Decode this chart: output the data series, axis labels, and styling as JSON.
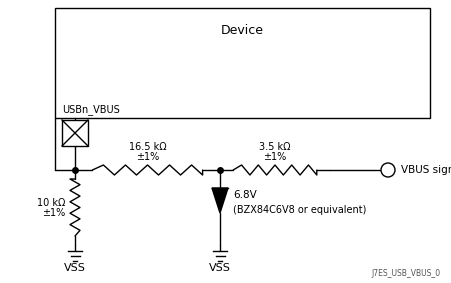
{
  "background_color": "#ffffff",
  "device_label": "Device",
  "usbvbus_label": "USBn_VBUS",
  "vbus_signal_label": "VBUS signal",
  "r1_label1": "16.5 kΩ",
  "r1_label2": "±1%",
  "r2_label1": "3.5 kΩ",
  "r2_label2": "±1%",
  "r3_label1": "10 kΩ",
  "r3_label2": "±1%",
  "zener_label1": "6.8V",
  "zener_label2": "(BZX84C6V8 or equivalent)",
  "vss1_label": "VSS",
  "vss2_label": "VSS",
  "footer_label": "J7ES_USB_VBUS_0",
  "line_color": "#000000",
  "lw": 1.0
}
